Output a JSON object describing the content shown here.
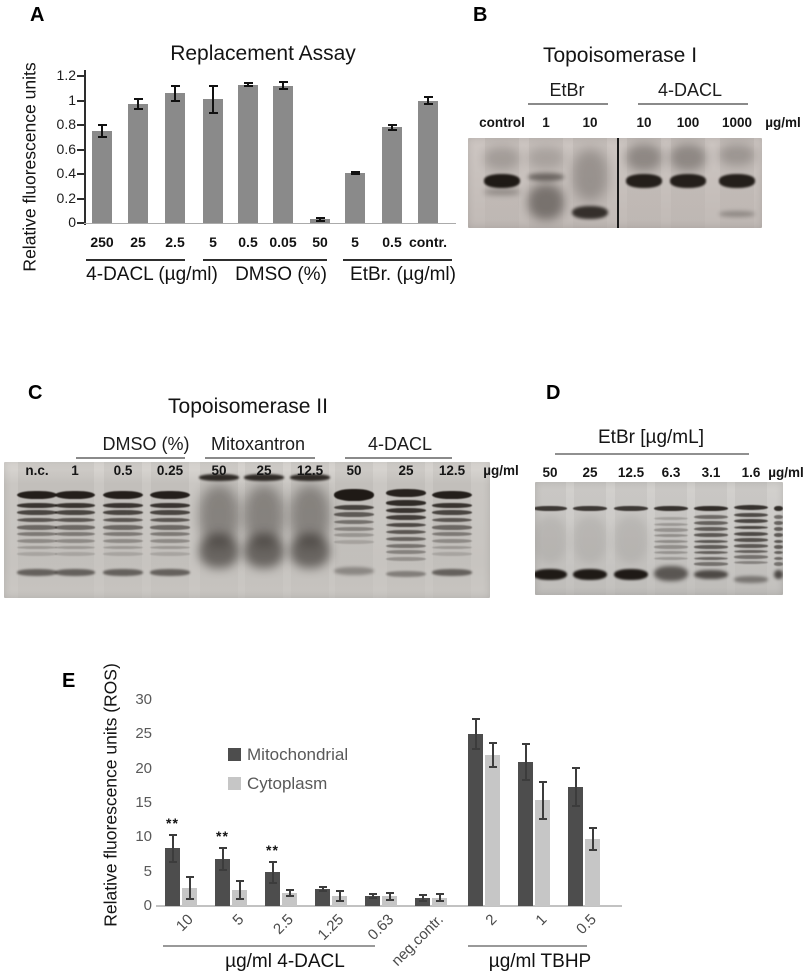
{
  "figure": {
    "panels": {
      "a": {
        "letter": "A",
        "title": "Replacement Assay",
        "y_axis_label": "Relative fluorescence units"
      },
      "b": {
        "letter": "B",
        "title": "Topoisomerase I",
        "unit_label": "µg/ml"
      },
      "c": {
        "letter": "C",
        "title": "Topoisomerase II",
        "unit_label": "µg/ml"
      },
      "d": {
        "letter": "D",
        "title": "EtBr [µg/mL]",
        "unit_label": "µg/ml"
      },
      "e": {
        "letter": "E",
        "y_axis_label": "Relative fluorescence units (ROS)"
      }
    }
  },
  "chart_data": [
    {
      "id": "replacement_assay",
      "type": "bar",
      "title": "Replacement Assay",
      "ylabel": "Relative fluorescence units",
      "ylim": [
        0,
        1.2
      ],
      "yticks": [
        0,
        0.2,
        0.4,
        0.6,
        0.8,
        1,
        1.2
      ],
      "categories": [
        "250",
        "25",
        "2.5",
        "5",
        "0.5",
        "0.05",
        "50",
        "5",
        "0.5",
        "contr."
      ],
      "values": [
        0.75,
        0.97,
        1.06,
        1.01,
        1.13,
        1.12,
        0.03,
        0.41,
        0.78,
        1.0
      ],
      "errors": [
        0.05,
        0.04,
        0.06,
        0.11,
        0.01,
        0.03,
        0.01,
        0.01,
        0.02,
        0.03
      ],
      "groups": [
        {
          "label": "4-DACL (µg/ml)",
          "categories_span": [
            0,
            2
          ]
        },
        {
          "label": "DMSO (%)",
          "categories_span": [
            3,
            6
          ]
        },
        {
          "label": "EtBr. (µg/ml)",
          "categories_span": [
            7,
            9
          ]
        }
      ],
      "bar_color": "#8a8a8a",
      "grid": false
    },
    {
      "id": "ros_assay",
      "type": "bar",
      "ylabel": "Relative fluorescence units (ROS)",
      "ylim": [
        0,
        30
      ],
      "yticks": [
        0,
        5,
        10,
        15,
        20,
        25,
        30
      ],
      "categories": [
        "10",
        "5",
        "2.5",
        "1.25",
        "0.63",
        "neg.contr.",
        "2",
        "1",
        "0.5"
      ],
      "series": [
        {
          "name": "Mitochondrial",
          "color": "#4d4d4d",
          "values": [
            8.4,
            6.8,
            4.9,
            2.5,
            1.5,
            1.2,
            25,
            21,
            17.3
          ],
          "errors": [
            2.0,
            1.6,
            1.5,
            0.3,
            0.3,
            0.4,
            2.2,
            2.6,
            2.8
          ]
        },
        {
          "name": "Cytoplasm",
          "color": "#c6c6c6",
          "values": [
            2.6,
            2.3,
            1.9,
            1.5,
            1.4,
            1.2,
            22,
            15.4,
            9.8
          ],
          "errors": [
            1.6,
            1.3,
            0.4,
            0.7,
            0.5,
            0.5,
            1.7,
            2.7,
            1.6
          ]
        }
      ],
      "significance": [
        "**",
        "**",
        "**",
        "",
        "",
        "",
        "",
        "",
        ""
      ],
      "groups": [
        {
          "label": "µg/ml 4-DACL",
          "categories_span": [
            0,
            4
          ]
        },
        {
          "label": "µg/ml TBHP",
          "categories_span": [
            6,
            8
          ]
        }
      ],
      "legend_position": "upper-center",
      "grid": false
    }
  ],
  "gels": {
    "b": {
      "groups": [
        {
          "label": "EtBr"
        },
        {
          "label": "4-DACL"
        }
      ],
      "lanes": [
        {
          "label": "control",
          "pattern": "main_band"
        },
        {
          "label": "1",
          "pattern": "smear_low"
        },
        {
          "label": "10",
          "pattern": "bottom_band"
        },
        {
          "label": "10",
          "pattern": "main_band_smear"
        },
        {
          "label": "100",
          "pattern": "main_band_smear"
        },
        {
          "label": "1000",
          "pattern": "main_band_faint_low"
        }
      ]
    },
    "c": {
      "groups": [
        {
          "label": "DMSO (%)"
        },
        {
          "label": "Mitoxantron"
        },
        {
          "label": "4-DACL"
        }
      ],
      "lanes": [
        {
          "label": "n.c.",
          "pattern": "ladder"
        },
        {
          "label": "1",
          "pattern": "ladder"
        },
        {
          "label": "0.5",
          "pattern": "ladder"
        },
        {
          "label": "0.25",
          "pattern": "ladder"
        },
        {
          "label": "50",
          "pattern": "smear_blob"
        },
        {
          "label": "25",
          "pattern": "smear_blob"
        },
        {
          "label": "12.5",
          "pattern": "smear_blob"
        },
        {
          "label": "50",
          "pattern": "ladder_dark"
        },
        {
          "label": "25",
          "pattern": "ladder_full"
        },
        {
          "label": "12.5",
          "pattern": "ladder"
        }
      ]
    },
    "d": {
      "lanes": [
        {
          "label": "50",
          "pattern": "top_bottom"
        },
        {
          "label": "25",
          "pattern": "top_bottom"
        },
        {
          "label": "12.5",
          "pattern": "top_bottom"
        },
        {
          "label": "6.3",
          "pattern": "top_mid_bottom"
        },
        {
          "label": "3.1",
          "pattern": "top_ladder_bottom"
        },
        {
          "label": "1.6",
          "pattern": "top_ladder"
        }
      ],
      "partial_lane": {
        "pattern": "top_ladder_bottom"
      }
    }
  },
  "gel_patterns": {
    "main_band": [
      {
        "t": 10,
        "h": 26,
        "o": 0.18,
        "b": 5
      },
      {
        "t": 40,
        "h": 15,
        "o": 0.95,
        "b": 1
      },
      {
        "t": 57,
        "h": 6,
        "o": 0.3,
        "b": 3
      }
    ],
    "smear_low": [
      {
        "t": 10,
        "h": 24,
        "o": 0.15,
        "b": 5
      },
      {
        "t": 39,
        "h": 9,
        "o": 0.48,
        "b": 2
      },
      {
        "t": 51,
        "h": 40,
        "o": 0.42,
        "b": 5
      }
    ],
    "bottom_band": [
      {
        "t": 12,
        "h": 58,
        "o": 0.24,
        "b": 6
      },
      {
        "t": 75,
        "h": 15,
        "o": 0.82,
        "b": 1.5
      }
    ],
    "main_band_smear": [
      {
        "t": 7,
        "h": 30,
        "o": 0.3,
        "b": 5
      },
      {
        "t": 40,
        "h": 15,
        "o": 0.92,
        "b": 1
      }
    ],
    "main_band_faint_low": [
      {
        "t": 7,
        "h": 24,
        "o": 0.22,
        "b": 5
      },
      {
        "t": 40,
        "h": 15,
        "o": 0.92,
        "b": 1
      },
      {
        "t": 81,
        "h": 7,
        "o": 0.28,
        "b": 2
      }
    ],
    "ladder": [
      {
        "t": 21,
        "h": 6.5,
        "o": 0.92,
        "b": 0.4
      },
      {
        "t": 30,
        "h": 3.8,
        "o": 0.8,
        "b": 0.4
      },
      {
        "t": 35.5,
        "h": 3.5,
        "o": 0.7,
        "b": 0.4
      },
      {
        "t": 41,
        "h": 3.4,
        "o": 0.6,
        "b": 0.4
      },
      {
        "t": 46.5,
        "h": 3.2,
        "o": 0.5,
        "b": 0.4
      },
      {
        "t": 51.5,
        "h": 3,
        "o": 0.4,
        "b": 0.4
      },
      {
        "t": 56.5,
        "h": 3,
        "o": 0.3,
        "b": 0.4
      },
      {
        "t": 61.5,
        "h": 2.8,
        "o": 0.22,
        "b": 0.4
      },
      {
        "t": 66.5,
        "h": 2.6,
        "o": 0.15,
        "b": 0.4
      },
      {
        "t": 79,
        "h": 5,
        "o": 0.55,
        "b": 1
      }
    ],
    "smear_blob": [
      {
        "t": 9,
        "h": 5,
        "o": 0.85,
        "b": 1
      },
      {
        "t": 17,
        "h": 45,
        "o": 0.35,
        "b": 6
      },
      {
        "t": 53,
        "h": 25,
        "o": 0.52,
        "b": 5
      }
    ],
    "ladder_dark": [
      {
        "t": 20,
        "h": 9,
        "o": 0.95,
        "b": 0.5
      },
      {
        "t": 31.5,
        "h": 4,
        "o": 0.72,
        "b": 0.4
      },
      {
        "t": 37,
        "h": 3.5,
        "o": 0.58,
        "b": 0.4
      },
      {
        "t": 42.5,
        "h": 3.3,
        "o": 0.45,
        "b": 0.4
      },
      {
        "t": 47.5,
        "h": 3,
        "o": 0.34,
        "b": 0.4
      },
      {
        "t": 52.5,
        "h": 3,
        "o": 0.24,
        "b": 0.4
      },
      {
        "t": 57.5,
        "h": 2.8,
        "o": 0.16,
        "b": 0.4
      },
      {
        "t": 77,
        "h": 6,
        "o": 0.32,
        "b": 1.5
      }
    ],
    "ladder_full": [
      {
        "t": 20,
        "h": 6,
        "o": 0.9,
        "b": 0.4
      },
      {
        "t": 28,
        "h": 4,
        "o": 0.85,
        "b": 0.4
      },
      {
        "t": 33.5,
        "h": 3.8,
        "o": 0.8,
        "b": 0.4
      },
      {
        "t": 39,
        "h": 3.6,
        "o": 0.75,
        "b": 0.4
      },
      {
        "t": 44.5,
        "h": 3.4,
        "o": 0.68,
        "b": 0.4
      },
      {
        "t": 50,
        "h": 3.2,
        "o": 0.6,
        "b": 0.4
      },
      {
        "t": 55,
        "h": 3,
        "o": 0.52,
        "b": 0.4
      },
      {
        "t": 60,
        "h": 3,
        "o": 0.44,
        "b": 0.4
      },
      {
        "t": 65,
        "h": 3,
        "o": 0.35,
        "b": 0.4
      },
      {
        "t": 70,
        "h": 3,
        "o": 0.26,
        "b": 0.4
      },
      {
        "t": 80,
        "h": 4.5,
        "o": 0.38,
        "b": 1
      }
    ],
    "top_bottom": [
      {
        "t": 21,
        "h": 4.5,
        "o": 0.78,
        "b": 0.6
      },
      {
        "t": 30,
        "h": 42,
        "o": 0.07,
        "b": 4
      },
      {
        "t": 77,
        "h": 10,
        "o": 0.95,
        "b": 1
      }
    ],
    "top_mid_bottom": [
      {
        "t": 21,
        "h": 4.5,
        "o": 0.82,
        "b": 0.6
      },
      {
        "t": 31,
        "h": 3,
        "o": 0.2,
        "b": 0.4
      },
      {
        "t": 36,
        "h": 3,
        "o": 0.24,
        "b": 0.4
      },
      {
        "t": 41,
        "h": 3,
        "o": 0.27,
        "b": 0.4
      },
      {
        "t": 46,
        "h": 3,
        "o": 0.29,
        "b": 0.4
      },
      {
        "t": 51,
        "h": 3,
        "o": 0.3,
        "b": 0.4
      },
      {
        "t": 56,
        "h": 3,
        "o": 0.29,
        "b": 0.4
      },
      {
        "t": 61,
        "h": 3,
        "o": 0.26,
        "b": 0.4
      },
      {
        "t": 66,
        "h": 3,
        "o": 0.22,
        "b": 0.4
      },
      {
        "t": 74,
        "h": 14,
        "o": 0.6,
        "b": 2
      }
    ],
    "top_ladder_bottom": [
      {
        "t": 21,
        "h": 4.5,
        "o": 0.85,
        "b": 0.6
      },
      {
        "t": 29,
        "h": 3.4,
        "o": 0.5,
        "b": 0.4
      },
      {
        "t": 34.5,
        "h": 3.4,
        "o": 0.55,
        "b": 0.4
      },
      {
        "t": 40,
        "h": 3.4,
        "o": 0.58,
        "b": 0.4
      },
      {
        "t": 45.5,
        "h": 3.2,
        "o": 0.6,
        "b": 0.4
      },
      {
        "t": 51,
        "h": 3.2,
        "o": 0.6,
        "b": 0.4
      },
      {
        "t": 56,
        "h": 3.2,
        "o": 0.58,
        "b": 0.4
      },
      {
        "t": 61,
        "h": 3,
        "o": 0.55,
        "b": 0.4
      },
      {
        "t": 66,
        "h": 3,
        "o": 0.5,
        "b": 0.4
      },
      {
        "t": 71,
        "h": 3,
        "o": 0.45,
        "b": 0.4
      },
      {
        "t": 78,
        "h": 8,
        "o": 0.68,
        "b": 1.5
      }
    ],
    "top_ladder": [
      {
        "t": 20,
        "h": 5,
        "o": 0.82,
        "b": 0.6
      },
      {
        "t": 27.5,
        "h": 3.6,
        "o": 0.68,
        "b": 0.4
      },
      {
        "t": 33,
        "h": 3.6,
        "o": 0.7,
        "b": 0.4
      },
      {
        "t": 38.5,
        "h": 3.5,
        "o": 0.7,
        "b": 0.4
      },
      {
        "t": 44,
        "h": 3.4,
        "o": 0.68,
        "b": 0.4
      },
      {
        "t": 49.5,
        "h": 3.3,
        "o": 0.64,
        "b": 0.4
      },
      {
        "t": 55,
        "h": 3.2,
        "o": 0.6,
        "b": 0.4
      },
      {
        "t": 60,
        "h": 3.2,
        "o": 0.54,
        "b": 0.4
      },
      {
        "t": 65,
        "h": 3,
        "o": 0.45,
        "b": 0.4
      },
      {
        "t": 70,
        "h": 3,
        "o": 0.35,
        "b": 0.4
      },
      {
        "t": 83,
        "h": 6,
        "o": 0.42,
        "b": 1.5
      }
    ]
  }
}
